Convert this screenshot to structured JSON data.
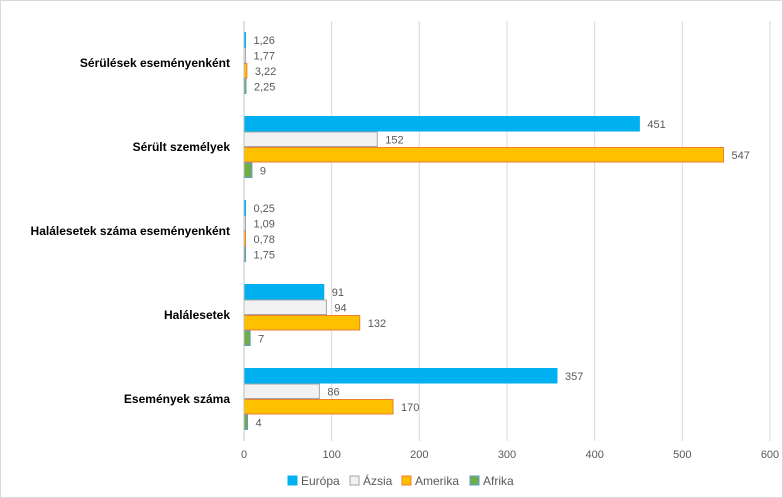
{
  "chart_data": {
    "type": "bar",
    "orientation": "horizontal",
    "categories": [
      "Sérülések eseményenként",
      "Sérült személyek",
      "Halálesetek száma eseményenként",
      "Halálesetek",
      "Események száma"
    ],
    "series": [
      {
        "name": "Európa",
        "color": "#00b0f0",
        "stroke": "#00b0f0",
        "values": [
          1.26,
          451,
          0.25,
          91,
          357
        ],
        "labels": [
          "1,26",
          "451",
          "0,25",
          "91",
          "357"
        ]
      },
      {
        "name": "Ázsia",
        "color": "#f2f2f2",
        "stroke": "#a6a6a6",
        "values": [
          1.77,
          152,
          1.09,
          94,
          86
        ],
        "labels": [
          "1,77",
          "152",
          "1,09",
          "94",
          "86"
        ]
      },
      {
        "name": "Amerika",
        "color": "#ffc000",
        "stroke": "#ed7d31",
        "values": [
          3.22,
          547,
          0.78,
          132,
          170
        ],
        "labels": [
          "3,22",
          "547",
          "0,78",
          "132",
          "170"
        ]
      },
      {
        "name": "Afrika",
        "color": "#70ad47",
        "stroke": "#5b9bd5",
        "values": [
          2.25,
          9,
          1.75,
          7,
          4
        ],
        "labels": [
          "2,25",
          "9",
          "1,75",
          "7",
          "4"
        ]
      }
    ],
    "xlim": [
      0,
      600
    ],
    "xticks": [
      0,
      100,
      200,
      300,
      400,
      500,
      600
    ],
    "grid": true,
    "legend": "bottom",
    "title": "",
    "xlabel": "",
    "ylabel": ""
  }
}
